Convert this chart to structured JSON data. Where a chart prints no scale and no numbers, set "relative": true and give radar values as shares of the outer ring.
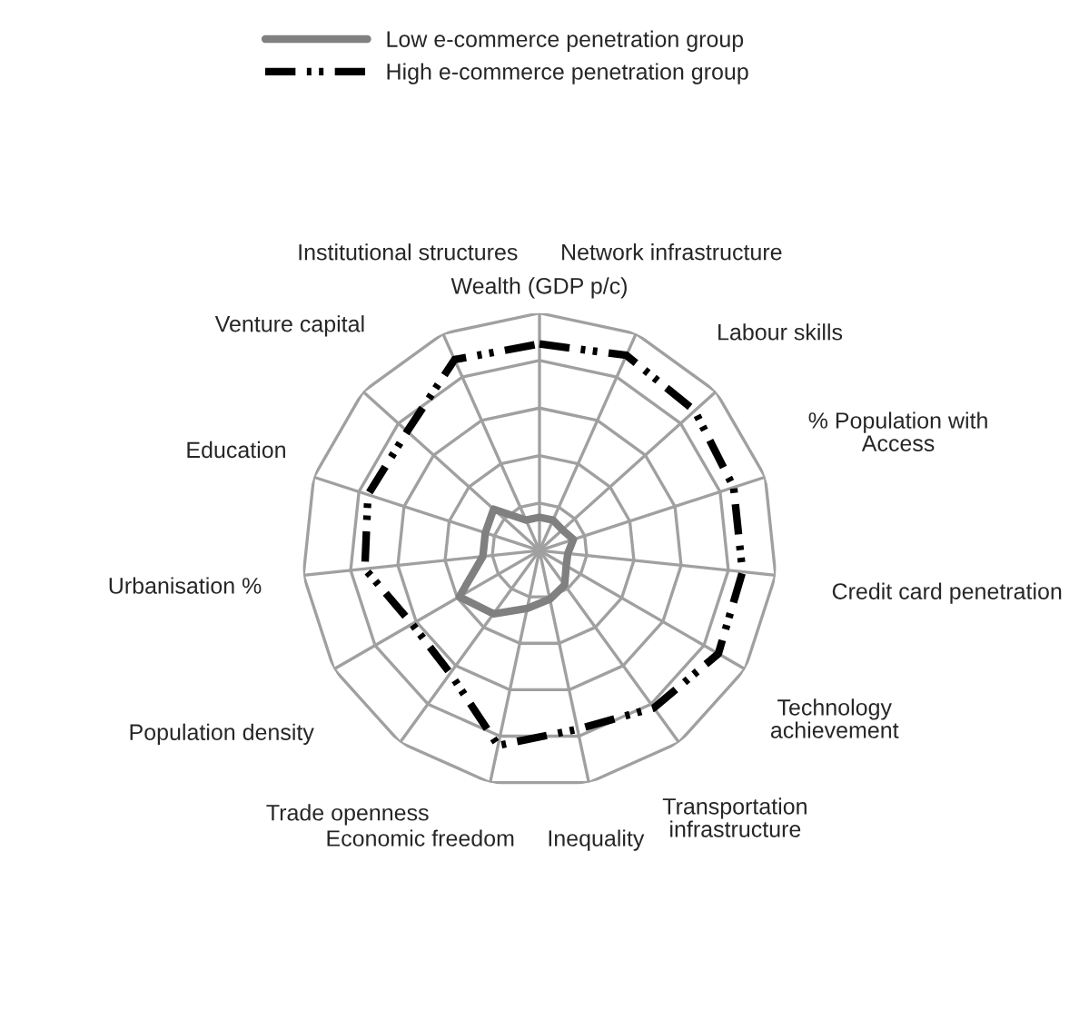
{
  "chart_data": {
    "type": "radar",
    "relative": true,
    "legend": "top",
    "grid": true,
    "categories": [
      "Wealth (GDP p/c)",
      "Network infrastructure",
      "Labour skills",
      "% Population with\nAccess",
      "Credit card penetration",
      "Technology\nachievement",
      "Transportation\ninfrastructure",
      "Inequality",
      "Economic freedom",
      "Trade openness",
      "Population density",
      "Urbanisation %",
      "Education",
      "Venture capital",
      "Institutional structures"
    ],
    "series": [
      {
        "name": "Low e-commerce penetration group",
        "color": "#808080",
        "line_style": "solid",
        "values": [
          0.14,
          0.14,
          0.13,
          0.15,
          0.12,
          0.13,
          0.18,
          0.21,
          0.25,
          0.33,
          0.39,
          0.24,
          0.24,
          0.26,
          0.14
        ]
      },
      {
        "name": "High e-commerce penetration group",
        "color": "#000000",
        "line_style": "dashed",
        "values": [
          0.87,
          0.9,
          0.88,
          0.86,
          0.86,
          0.87,
          0.82,
          0.77,
          0.84,
          0.64,
          0.62,
          0.74,
          0.76,
          0.75,
          0.88
        ]
      }
    ]
  }
}
